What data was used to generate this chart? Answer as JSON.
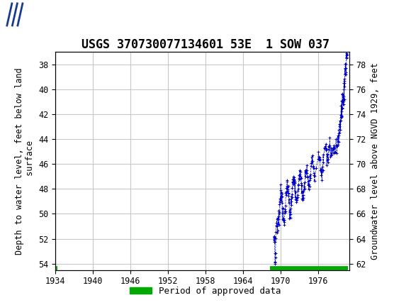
{
  "title": "USGS 370730077134601 53E  1 SOW 037",
  "ylabel_left": "Depth to water level, feet below land\n surface",
  "ylabel_right": "Groundwater level above NGVD 1929, feet",
  "xlim": [
    1934,
    1981
  ],
  "ylim_left": [
    54.5,
    37.0
  ],
  "ylim_right": [
    61.5,
    79.0
  ],
  "yticks_left": [
    38,
    40,
    42,
    44,
    46,
    48,
    50,
    52,
    54
  ],
  "yticks_right": [
    62,
    64,
    66,
    68,
    70,
    72,
    74,
    76,
    78
  ],
  "xticks": [
    1934,
    1940,
    1946,
    1952,
    1958,
    1964,
    1970,
    1976
  ],
  "header_color": "#1a6b3c",
  "data_color": "#0000cc",
  "approved_bar_color": "#00aa00",
  "approved_bar_x_start": 1968.3,
  "approved_bar_x_end": 1980.8,
  "approved_bar_y": 54.42,
  "tiny_bar_x_start": 1933.8,
  "tiny_bar_x_end": 1934.3,
  "legend_label": "Period of approved data",
  "background_color": "#ffffff",
  "plot_bg_color": "#ffffff",
  "grid_color": "#c8c8c8",
  "font_family": "monospace",
  "title_fontsize": 12,
  "axis_label_fontsize": 8.5,
  "tick_fontsize": 8.5
}
